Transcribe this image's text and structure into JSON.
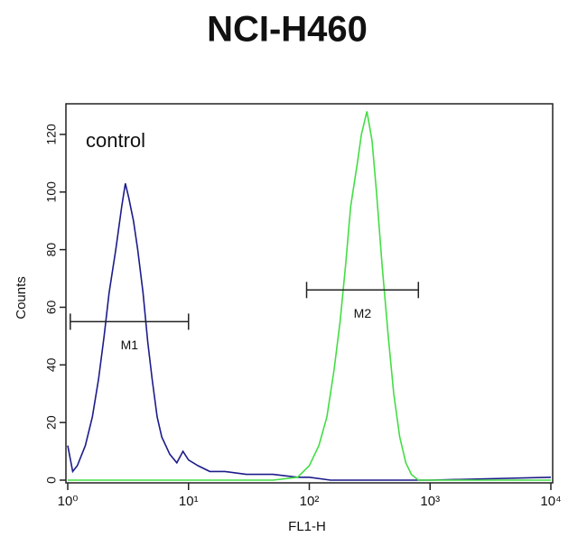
{
  "chart_data": {
    "type": "line",
    "title": "NCI-H460",
    "xlabel": "FL1-H",
    "ylabel": "Counts",
    "annotation": "control",
    "xscale": "log",
    "xlim": [
      1,
      10000
    ],
    "xticks": [
      {
        "value": 1,
        "label": "10⁰"
      },
      {
        "value": 10,
        "label": "10¹"
      },
      {
        "value": 100,
        "label": "10²"
      },
      {
        "value": 1000,
        "label": "10³"
      },
      {
        "value": 10000,
        "label": "10⁴"
      }
    ],
    "ylim": [
      0,
      130
    ],
    "yticks": [
      0,
      20,
      40,
      60,
      80,
      100,
      120
    ],
    "gates": [
      {
        "label": "M1",
        "x": [
          1.05,
          10
        ],
        "y": 55
      },
      {
        "label": "M2",
        "x": [
          95,
          800
        ],
        "y": 66
      }
    ],
    "series": [
      {
        "name": "control",
        "color": "#1c1c8a",
        "x": [
          1,
          1.1,
          1.2,
          1.4,
          1.6,
          1.8,
          2,
          2.2,
          2.5,
          2.8,
          3,
          3.2,
          3.5,
          3.8,
          4.2,
          4.6,
          5,
          5.5,
          6,
          7,
          8,
          9,
          10,
          12,
          15,
          20,
          30,
          50,
          80,
          100,
          150,
          300,
          1000,
          10000
        ],
        "values": [
          12,
          3,
          5,
          12,
          22,
          35,
          50,
          65,
          80,
          95,
          103,
          98,
          90,
          80,
          65,
          48,
          35,
          22,
          15,
          9,
          6,
          10,
          7,
          5,
          3,
          3,
          2,
          2,
          1,
          1,
          0,
          0,
          0,
          1
        ]
      },
      {
        "name": "NCI-H460",
        "color": "#44dd44",
        "x": [
          1,
          10,
          50,
          80,
          100,
          120,
          140,
          160,
          180,
          200,
          220,
          250,
          270,
          300,
          330,
          360,
          400,
          450,
          500,
          560,
          630,
          700,
          800,
          1000,
          10000
        ],
        "values": [
          0,
          0,
          0,
          1,
          5,
          12,
          22,
          38,
          55,
          75,
          95,
          110,
          120,
          128,
          118,
          100,
          75,
          50,
          30,
          15,
          6,
          2,
          0,
          0,
          0
        ]
      }
    ]
  }
}
